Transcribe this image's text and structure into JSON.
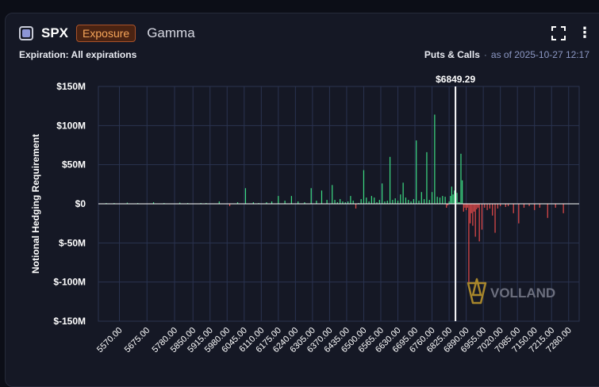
{
  "header": {
    "symbol": "SPX",
    "badge": "Exposure",
    "metric": "Gamma",
    "expand_icon": "fullscreen-icon",
    "more_icon": "more-vertical-icon"
  },
  "subheader": {
    "expiration": "Expiration: All expirations",
    "type": "Puts & Calls",
    "separator": "·",
    "as_of": "as of 2025-10-27 12:17"
  },
  "watermark": "VOLLAND",
  "colors": {
    "positive": "#3ddc84",
    "negative": "#e84b4b",
    "price_line": "#ffffff",
    "grid": "#2a3350",
    "accent_badge": "#f7a65a"
  },
  "chart_data": {
    "type": "bar",
    "ylabel": "Notional Hedging Requirement",
    "ylim": [
      -150,
      150
    ],
    "y_ticks": [
      150,
      100,
      50,
      0,
      -50,
      -100,
      -150
    ],
    "y_tick_labels": [
      "$150M",
      "$100M",
      "$50M",
      "$0",
      "$-50M",
      "$-100M",
      "$-150M"
    ],
    "x_ticks": [
      5570,
      5675,
      5780,
      5850,
      5915,
      5980,
      6045,
      6110,
      6175,
      6240,
      6305,
      6370,
      6435,
      6500,
      6565,
      6630,
      6695,
      6760,
      6825,
      6890,
      6955,
      7020,
      7085,
      7150,
      7215,
      7280
    ],
    "x_tick_labels": [
      "5570.00",
      "5675.00",
      "5780.00",
      "5850.00",
      "5915.00",
      "5980.00",
      "6045.00",
      "6110.00",
      "6175.00",
      "6240.00",
      "6305.00",
      "6370.00",
      "6435.00",
      "6500.00",
      "6565.00",
      "6630.00",
      "6695.00",
      "6760.00",
      "6825.00",
      "6890.00",
      "6955.00",
      "7020.00",
      "7085.00",
      "7150.00",
      "7215.00",
      "7280.00"
    ],
    "spot_label": "$6849.29",
    "spot_value": 6849.29,
    "units": "$M",
    "bars": [
      [
        5520,
        1
      ],
      [
        5550,
        1
      ],
      [
        5600,
        1.5
      ],
      [
        5640,
        1
      ],
      [
        5700,
        2
      ],
      [
        5740,
        1
      ],
      [
        5800,
        1.5
      ],
      [
        5830,
        1
      ],
      [
        5880,
        1
      ],
      [
        5900,
        1
      ],
      [
        5950,
        3
      ],
      [
        5990,
        -3
      ],
      [
        6020,
        2
      ],
      [
        6050,
        20
      ],
      [
        6080,
        2
      ],
      [
        6100,
        1
      ],
      [
        6130,
        2
      ],
      [
        6150,
        3
      ],
      [
        6175,
        10
      ],
      [
        6200,
        4
      ],
      [
        6225,
        10
      ],
      [
        6250,
        3
      ],
      [
        6275,
        2
      ],
      [
        6300,
        20
      ],
      [
        6320,
        4
      ],
      [
        6340,
        17
      ],
      [
        6360,
        5
      ],
      [
        6380,
        24
      ],
      [
        6390,
        5
      ],
      [
        6400,
        2
      ],
      [
        6410,
        6
      ],
      [
        6420,
        3
      ],
      [
        6430,
        2
      ],
      [
        6440,
        3
      ],
      [
        6450,
        10
      ],
      [
        6460,
        4
      ],
      [
        6470,
        -6
      ],
      [
        6480,
        1
      ],
      [
        6490,
        6
      ],
      [
        6500,
        43
      ],
      [
        6510,
        8
      ],
      [
        6520,
        3
      ],
      [
        6530,
        10
      ],
      [
        6540,
        8
      ],
      [
        6550,
        2
      ],
      [
        6560,
        5
      ],
      [
        6570,
        26
      ],
      [
        6580,
        3
      ],
      [
        6590,
        4
      ],
      [
        6600,
        60
      ],
      [
        6610,
        5
      ],
      [
        6620,
        7
      ],
      [
        6630,
        4
      ],
      [
        6640,
        12
      ],
      [
        6650,
        27
      ],
      [
        6660,
        8
      ],
      [
        6670,
        5
      ],
      [
        6680,
        3
      ],
      [
        6690,
        6
      ],
      [
        6700,
        81
      ],
      [
        6710,
        4
      ],
      [
        6720,
        15
      ],
      [
        6730,
        6
      ],
      [
        6740,
        66
      ],
      [
        6750,
        5
      ],
      [
        6760,
        15
      ],
      [
        6770,
        114
      ],
      [
        6780,
        9
      ],
      [
        6790,
        8
      ],
      [
        6800,
        10
      ],
      [
        6810,
        9
      ],
      [
        6815,
        -5
      ],
      [
        6820,
        -2
      ],
      [
        6825,
        3
      ],
      [
        6830,
        10
      ],
      [
        6835,
        22
      ],
      [
        6840,
        12
      ],
      [
        6845,
        17
      ],
      [
        6850,
        6
      ],
      [
        6855,
        14
      ],
      [
        6860,
        2
      ],
      [
        6865,
        2
      ],
      [
        6870,
        64
      ],
      [
        6875,
        30
      ],
      [
        6880,
        -10
      ],
      [
        6885,
        -5
      ],
      [
        6890,
        -8
      ],
      [
        6895,
        -5
      ],
      [
        6900,
        -100
      ],
      [
        6905,
        -25
      ],
      [
        6910,
        -12
      ],
      [
        6915,
        -28
      ],
      [
        6920,
        -10
      ],
      [
        6925,
        -42
      ],
      [
        6930,
        -7
      ],
      [
        6935,
        -5
      ],
      [
        6940,
        -48
      ],
      [
        6950,
        -33
      ],
      [
        6960,
        -5
      ],
      [
        6970,
        -8
      ],
      [
        6980,
        -6
      ],
      [
        6990,
        -15
      ],
      [
        7000,
        -37
      ],
      [
        7010,
        -6
      ],
      [
        7020,
        -3
      ],
      [
        7040,
        -4
      ],
      [
        7050,
        -3
      ],
      [
        7070,
        -12
      ],
      [
        7090,
        -25
      ],
      [
        7110,
        -5
      ],
      [
        7130,
        -3
      ],
      [
        7150,
        -8
      ],
      [
        7170,
        -5
      ],
      [
        7200,
        -18
      ],
      [
        7230,
        -5
      ],
      [
        7260,
        -12
      ]
    ]
  }
}
